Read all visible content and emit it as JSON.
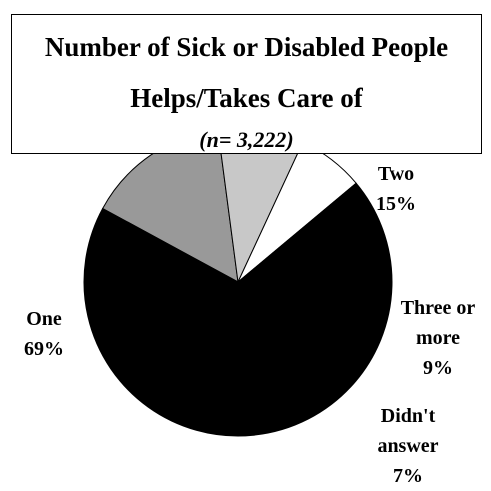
{
  "chart_data": {
    "type": "pie",
    "title": "Number of Sick or Disabled People Helps/Takes Care of",
    "title_lines": [
      "Number of Sick or Disabled People",
      "Helps/Takes Care of"
    ],
    "subtitle": "(n= 3,222)",
    "slices": [
      {
        "category": "One",
        "value": 69,
        "percent_label": "69%",
        "color": "#000000",
        "label_lines": [
          "One",
          "69%"
        ]
      },
      {
        "category": "Two",
        "value": 15,
        "percent_label": "15%",
        "color": "#999999",
        "label_lines": [
          "Two",
          "15%"
        ]
      },
      {
        "category": "Three or more",
        "value": 9,
        "percent_label": "9%",
        "color": "#c8c8c8",
        "label_lines": [
          "Three or",
          "more",
          "9%"
        ]
      },
      {
        "category": "Didn't answer",
        "value": 7,
        "percent_label": "7%",
        "color": "#ffffff",
        "label_lines": [
          "Didn't",
          "answer",
          "7%"
        ]
      }
    ],
    "legend": "none",
    "labels": "outside slices"
  }
}
